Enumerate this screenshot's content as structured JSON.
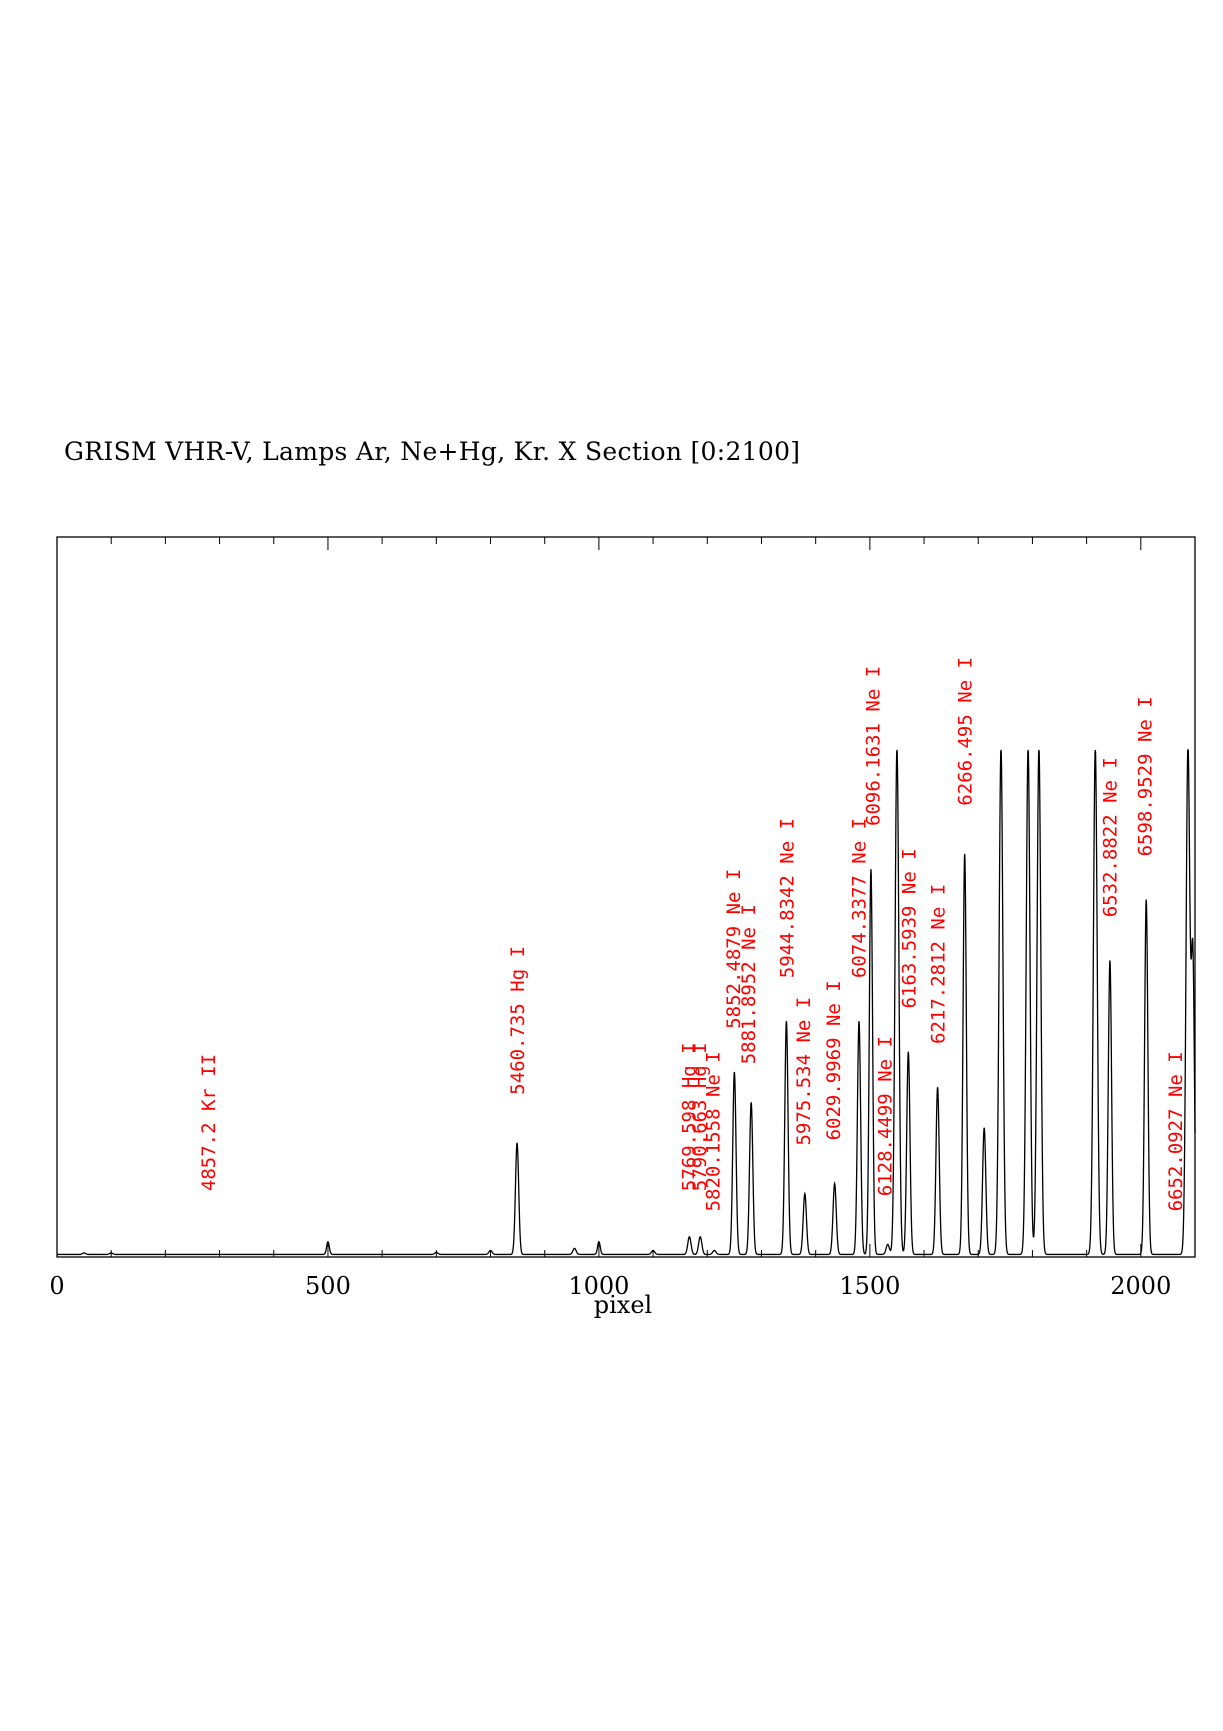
{
  "title": "GRISM VHR-V, Lamps Ar, Ne+Hg, Kr. X Section [0:2100]",
  "chart_data": {
    "type": "line",
    "title": "GRISM VHR-V, Lamps Ar, Ne+Hg, Kr. X Section [0:2100]",
    "xlabel": "pixel",
    "ylabel": "",
    "xlim": [
      0,
      2100
    ],
    "ylim": [
      0,
      1.42
    ],
    "x_ticks": [
      0,
      500,
      1000,
      1500,
      2000
    ],
    "grid": false,
    "baseline": 0.005,
    "series": [
      {
        "peaks": [
          {
            "x": 50,
            "h": 0.003,
            "w": 3
          },
          {
            "x": 100,
            "h": 0.003,
            "w": 3
          },
          {
            "x": 500,
            "h": 0.025,
            "w": 2.5
          },
          {
            "x": 700,
            "h": 0.004,
            "w": 3
          },
          {
            "x": 800,
            "h": 0.008,
            "w": 3
          },
          {
            "x": 849,
            "h": 0.22,
            "w": 3
          },
          {
            "x": 955,
            "h": 0.012,
            "w": 3
          },
          {
            "x": 1000,
            "h": 0.025,
            "w": 2.5
          },
          {
            "x": 1100,
            "h": 0.008,
            "w": 3
          },
          {
            "x": 1167,
            "h": 0.035,
            "w": 3
          },
          {
            "x": 1187,
            "h": 0.035,
            "w": 3
          },
          {
            "x": 1213,
            "h": 0.008,
            "w": 3
          },
          {
            "x": 1250,
            "h": 0.36,
            "w": 3
          },
          {
            "x": 1281,
            "h": 0.3,
            "w": 3
          },
          {
            "x": 1346,
            "h": 0.46,
            "w": 3
          },
          {
            "x": 1380,
            "h": 0.12,
            "w": 3
          },
          {
            "x": 1435,
            "h": 0.14,
            "w": 3
          },
          {
            "x": 1480,
            "h": 0.46,
            "w": 3
          },
          {
            "x": 1502,
            "h": 0.76,
            "w": 3
          },
          {
            "x": 1533,
            "h": 0.02,
            "w": 3
          },
          {
            "x": 1550,
            "h": 1.0,
            "w": 3.5
          },
          {
            "x": 1571,
            "h": 0.4,
            "w": 3
          },
          {
            "x": 1625,
            "h": 0.33,
            "w": 3
          },
          {
            "x": 1675,
            "h": 0.79,
            "w": 3
          },
          {
            "x": 1711,
            "h": 0.25,
            "w": 3
          },
          {
            "x": 1742,
            "h": 1.0,
            "w": 3.5
          },
          {
            "x": 1792,
            "h": 1.0,
            "w": 3.5
          },
          {
            "x": 1812,
            "h": 1.0,
            "w": 3.5
          },
          {
            "x": 1916,
            "h": 1.0,
            "w": 3.5
          },
          {
            "x": 1943,
            "h": 0.58,
            "w": 3
          },
          {
            "x": 2010,
            "h": 0.7,
            "w": 3
          },
          {
            "x": 2087,
            "h": 1.0,
            "w": 3.5
          },
          {
            "x": 2096,
            "h": 0.58,
            "w": 3
          }
        ]
      }
    ],
    "annotations": [
      {
        "text": "4857.2   Kr II",
        "x": 279,
        "y": 0.13
      },
      {
        "text": "5460.735  Hg I",
        "x": 849,
        "y": 0.32
      },
      {
        "text": "5769.598  Hg I",
        "x": 1165,
        "y": 0.13
      },
      {
        "text": "5790.663  Hg I",
        "x": 1185,
        "y": 0.13
      },
      {
        "text": "5820.1558  Ne I",
        "x": 1210,
        "y": 0.09
      },
      {
        "text": "5852.4879  Ne I",
        "x": 1247,
        "y": 0.45
      },
      {
        "text": "5881.8952  Ne I",
        "x": 1275,
        "y": 0.38
      },
      {
        "text": "5944.8342  Ne I",
        "x": 1346,
        "y": 0.55
      },
      {
        "text": "5975.534  Ne I",
        "x": 1377,
        "y": 0.22
      },
      {
        "text": "6029.9969  Ne I",
        "x": 1432,
        "y": 0.23
      },
      {
        "text": "6074.3377  Ne I",
        "x": 1479,
        "y": 0.55
      },
      {
        "text": "6096.1631  Ne I",
        "x": 1505,
        "y": 0.85
      },
      {
        "text": "6128.4499  Ne I",
        "x": 1527,
        "y": 0.12
      },
      {
        "text": "6163.5939  Ne I",
        "x": 1571,
        "y": 0.49
      },
      {
        "text": "6217.2812  Ne I",
        "x": 1625,
        "y": 0.42
      },
      {
        "text": "6266.495  Ne I",
        "x": 1675,
        "y": 0.89
      },
      {
        "text": "6532.8822  Ne I",
        "x": 1942,
        "y": 0.67
      },
      {
        "text": "6598.9529  Ne I",
        "x": 2007,
        "y": 0.79
      },
      {
        "text": "6652.0927  Ne I",
        "x": 2063,
        "y": 0.09
      }
    ]
  }
}
